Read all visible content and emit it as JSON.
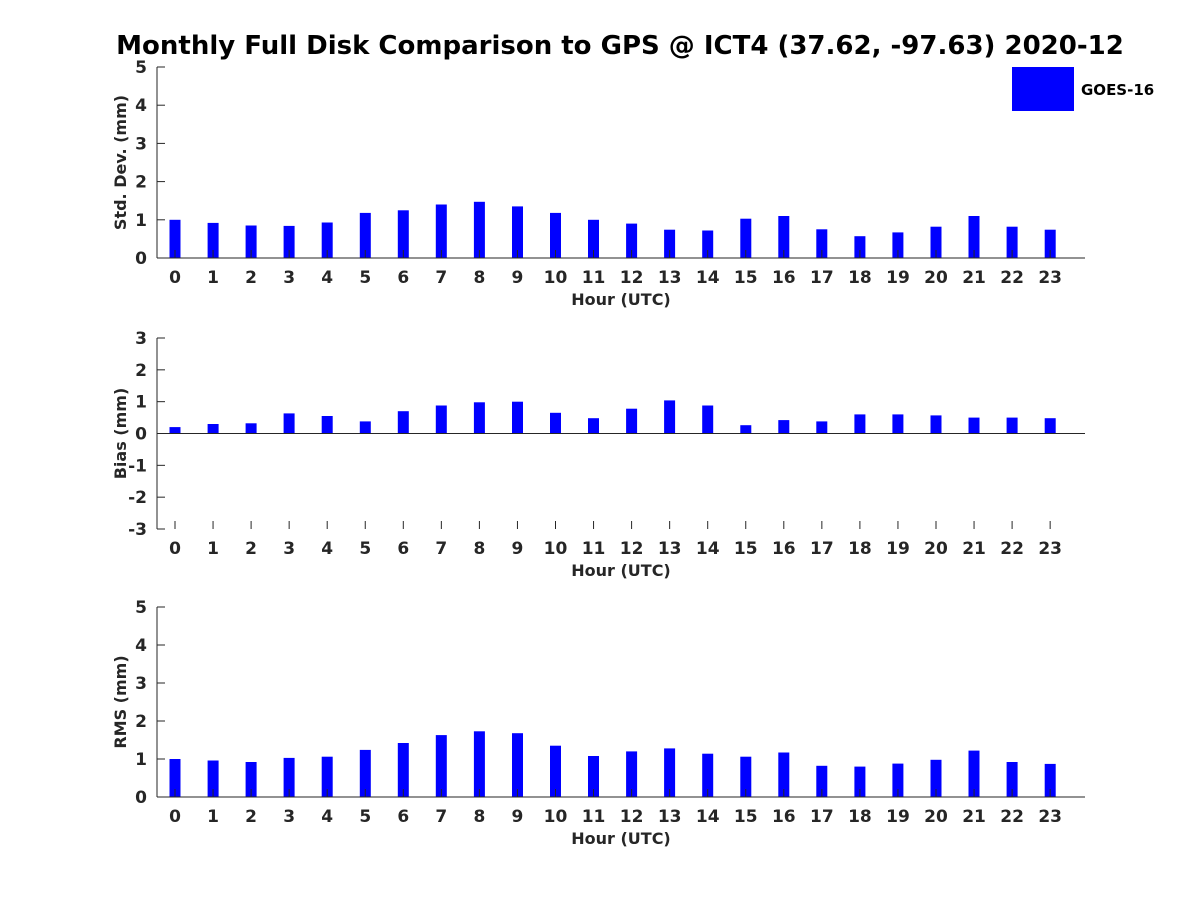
{
  "title": "Monthly Full Disk Comparison to GPS @ ICT4 (37.62, -97.63) 2020-12",
  "legend": {
    "entries": [
      {
        "label": "GOES-16",
        "color": "#0000ff"
      }
    ],
    "placement": "top-right"
  },
  "chart_data": [
    {
      "type": "bar",
      "xlabel": "Hour (UTC)",
      "ylabel": "Std. Dev. (mm)",
      "ylim": [
        0,
        5
      ],
      "yticks": [
        0,
        1,
        2,
        3,
        4,
        5
      ],
      "categories": [
        "0",
        "1",
        "2",
        "3",
        "4",
        "5",
        "6",
        "7",
        "8",
        "9",
        "10",
        "11",
        "12",
        "13",
        "14",
        "15",
        "16",
        "17",
        "18",
        "19",
        "20",
        "21",
        "22",
        "23"
      ],
      "series": [
        {
          "name": "GOES-16",
          "color": "#0000ff",
          "values": [
            1.0,
            0.92,
            0.85,
            0.84,
            0.93,
            1.18,
            1.25,
            1.4,
            1.47,
            1.35,
            1.18,
            1.0,
            0.9,
            0.74,
            0.72,
            1.03,
            1.1,
            0.75,
            0.57,
            0.67,
            0.82,
            1.1,
            0.82,
            0.74
          ]
        }
      ],
      "grid": false
    },
    {
      "type": "bar",
      "xlabel": "Hour (UTC)",
      "ylabel": "Bias (mm)",
      "ylim": [
        -3,
        3
      ],
      "yticks": [
        -3,
        -2,
        -1,
        0,
        1,
        2,
        3
      ],
      "categories": [
        "0",
        "1",
        "2",
        "3",
        "4",
        "5",
        "6",
        "7",
        "8",
        "9",
        "10",
        "11",
        "12",
        "13",
        "14",
        "15",
        "16",
        "17",
        "18",
        "19",
        "20",
        "21",
        "22",
        "23"
      ],
      "series": [
        {
          "name": "GOES-16",
          "color": "#0000ff",
          "values": [
            0.2,
            0.3,
            0.32,
            0.63,
            0.55,
            0.38,
            0.7,
            0.88,
            0.98,
            1.0,
            0.65,
            0.48,
            0.78,
            1.04,
            0.88,
            0.26,
            0.42,
            0.38,
            0.6,
            0.6,
            0.57,
            0.5,
            0.5,
            0.48
          ]
        }
      ],
      "grid": false
    },
    {
      "type": "bar",
      "xlabel": "Hour (UTC)",
      "ylabel": "RMS (mm)",
      "ylim": [
        0,
        5
      ],
      "yticks": [
        0,
        1,
        2,
        3,
        4,
        5
      ],
      "categories": [
        "0",
        "1",
        "2",
        "3",
        "4",
        "5",
        "6",
        "7",
        "8",
        "9",
        "10",
        "11",
        "12",
        "13",
        "14",
        "15",
        "16",
        "17",
        "18",
        "19",
        "20",
        "21",
        "22",
        "23"
      ],
      "series": [
        {
          "name": "GOES-16",
          "color": "#0000ff",
          "values": [
            1.0,
            0.96,
            0.92,
            1.03,
            1.06,
            1.24,
            1.42,
            1.63,
            1.73,
            1.68,
            1.35,
            1.08,
            1.2,
            1.28,
            1.14,
            1.06,
            1.17,
            0.82,
            0.8,
            0.88,
            0.98,
            1.22,
            0.92,
            0.87
          ]
        }
      ],
      "grid": false
    }
  ]
}
